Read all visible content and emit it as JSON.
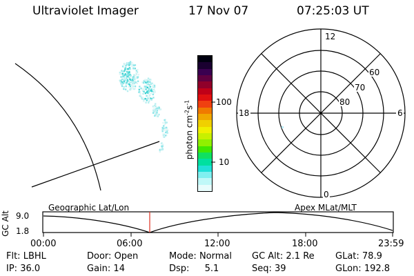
{
  "header": {
    "instrument": "Ultraviolet Imager",
    "date": "17 Nov 07",
    "time": "07:25:03 UT"
  },
  "colorbar": {
    "label": "photon cm",
    "label_sup1": "-2",
    "label_s": "s",
    "label_sup2": "-1",
    "ticks": [
      "100",
      "10"
    ],
    "colors": [
      "#000010",
      "#1a0030",
      "#3a0050",
      "#600040",
      "#90002a",
      "#c00018",
      "#e01010",
      "#f04010",
      "#f07a00",
      "#f0a800",
      "#f0d000",
      "#f0f000",
      "#c8f000",
      "#90f000",
      "#40e800",
      "#10e060",
      "#00e0a0",
      "#20e0d8",
      "#80f0f0",
      "#c0f8f8",
      "#e8fcfc"
    ]
  },
  "polar_plot": {
    "mlt_labels": {
      "top": "12",
      "left": "18",
      "right": "6",
      "bottom": "0"
    },
    "lat_labels": [
      "60",
      "70",
      "80"
    ]
  },
  "timeline": {
    "left_label": "Geographic Lat/Lon",
    "right_label": "Apex MLat/MLT",
    "axis_title": "GC Alt",
    "y_ticks": [
      "9.0",
      "1.8"
    ],
    "x_ticks": [
      "00:00",
      "06:00",
      "12:00",
      "18:00",
      "23:59"
    ],
    "current_time_marker": "07:25:03"
  },
  "status": {
    "flt_label": "Flt:",
    "flt_value": "LBHL",
    "ip_label": "IP:",
    "ip_value": "36.0",
    "door_label": "Door:",
    "door_value": "Open",
    "gain_label": "Gain:",
    "gain_value": "14",
    "mode_label": "Mode:",
    "mode_value": "Normal",
    "dsp_label": "Dsp:",
    "dsp_value": "5.1",
    "gcalt_label": "GC Alt:",
    "gcalt_value": "2.1 Re",
    "seq_label": "Seq:",
    "seq_value": "39",
    "glat_label": "GLat:",
    "glat_value": "78.9",
    "glon_label": "GLon:",
    "glon_value": "192.8"
  }
}
